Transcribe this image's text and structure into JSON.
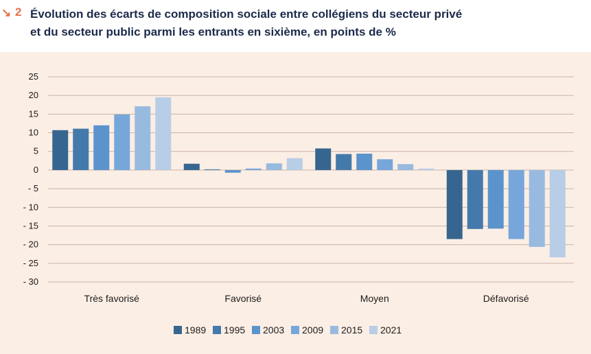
{
  "figure": {
    "number": "2",
    "title_line1": "Évolution des écarts de composition sociale entre collégiens du secteur privé",
    "title_line2": "et du secteur public parmi les entrants en sixième, en points de %"
  },
  "colors": {
    "accent": "#e8704a",
    "title": "#1b2a4a",
    "panel_bg": "#fbeee5",
    "series": [
      "#36668f",
      "#4479ab",
      "#5b93cc",
      "#77a6da",
      "#99badf",
      "#b8cde6"
    ]
  },
  "chart_data": {
    "type": "bar",
    "categories": [
      "Très favorisé",
      "Favorisé",
      "Moyen",
      "Défavorisé"
    ],
    "series": [
      {
        "name": "1989",
        "values": [
          10.7,
          1.7,
          5.8,
          -18.5
        ]
      },
      {
        "name": "1995",
        "values": [
          11.1,
          0.2,
          4.3,
          -15.8
        ]
      },
      {
        "name": "2003",
        "values": [
          12.0,
          -0.7,
          4.4,
          -15.7
        ]
      },
      {
        "name": "2009",
        "values": [
          14.9,
          0.4,
          2.9,
          -18.5
        ]
      },
      {
        "name": "2015",
        "values": [
          17.1,
          1.8,
          1.6,
          -20.6
        ]
      },
      {
        "name": "2021",
        "values": [
          19.5,
          3.2,
          0.4,
          -23.4
        ]
      }
    ],
    "ylim": [
      -30,
      25
    ],
    "yticks": [
      25,
      20,
      15,
      10,
      5,
      0,
      -5,
      -10,
      -15,
      -20,
      -25,
      -30
    ],
    "ytick_labels": [
      "25",
      "20",
      "15",
      "10",
      "5",
      "0",
      "- 5",
      "- 10",
      "- 15",
      "- 20",
      "- 25",
      "- 30"
    ],
    "grid": true,
    "legend": "bottom"
  }
}
